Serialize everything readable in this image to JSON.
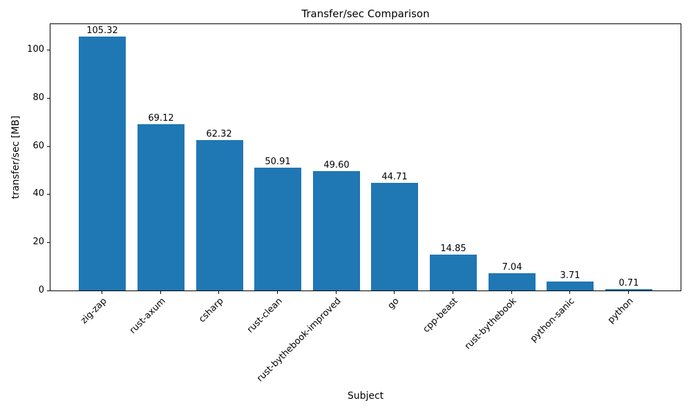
{
  "chart_data": {
    "type": "bar",
    "title": "Transfer/sec Comparison",
    "xlabel": "Subject",
    "ylabel": "transfer/sec [MB]",
    "categories": [
      "zig-zap",
      "rust-axum",
      "csharp",
      "rust-clean",
      "rust-bythebook-improved",
      "go",
      "cpp-beast",
      "rust-bythebook",
      "python-sanic",
      "python"
    ],
    "values": [
      105.32,
      69.12,
      62.32,
      50.91,
      49.6,
      44.71,
      14.85,
      7.04,
      3.71,
      0.71
    ],
    "value_labels": [
      "105.32",
      "69.12",
      "62.32",
      "50.91",
      "49.60",
      "44.71",
      "14.85",
      "7.04",
      "3.71",
      "0.71"
    ],
    "yticks": [
      0,
      20,
      40,
      60,
      80,
      100
    ],
    "ylim": [
      0,
      110.6
    ],
    "bar_color": "#1f77b4",
    "grid": false,
    "legend_position": "none"
  }
}
